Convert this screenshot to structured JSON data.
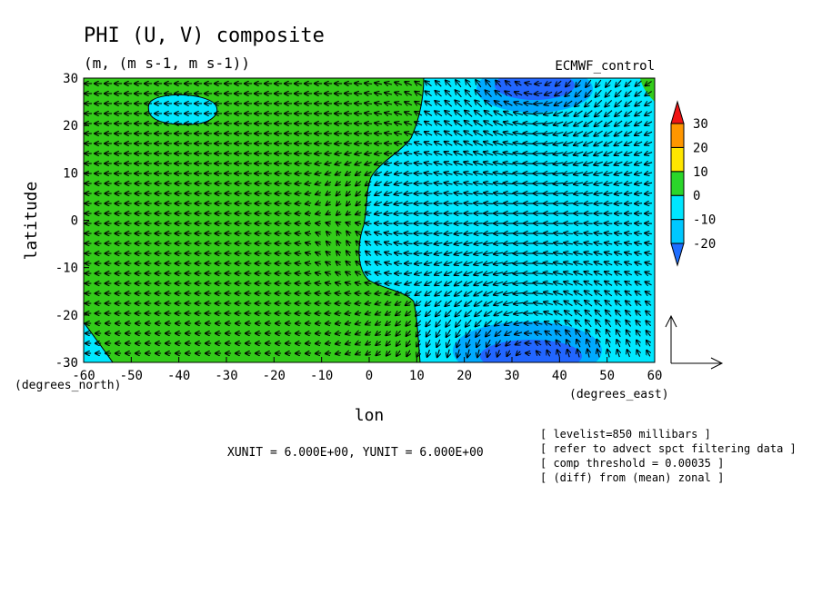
{
  "chart_data": {
    "type": "heatmap",
    "title": "PHI (U, V) composite",
    "subtitle": "(m, (m s-1, m s-1))",
    "dataset_label": "ECMWF_control",
    "xlabel": "lon",
    "ylabel": "latitude",
    "x_unit_label": "(degrees_east)",
    "y_unit_label": "(degrees_north)",
    "xlim": [
      -60,
      60
    ],
    "ylim": [
      -30,
      30
    ],
    "x_ticks": [
      -60,
      -50,
      -40,
      -30,
      -20,
      -10,
      0,
      10,
      20,
      30,
      40,
      50,
      60
    ],
    "y_ticks": [
      -30,
      -20,
      -10,
      0,
      10,
      20,
      30
    ],
    "x_tick_labels": [
      "-60",
      "-50",
      "-40",
      "-30",
      "-20",
      "-10",
      "0",
      "10",
      "20",
      "30",
      "40",
      "50",
      "60"
    ],
    "y_tick_labels": [
      "-30",
      "-20",
      "-10",
      "0",
      "10",
      "20",
      "30"
    ],
    "colorbar": {
      "levels": [
        -20,
        -10,
        0,
        10,
        20,
        30
      ],
      "labels": [
        "-20",
        "-10",
        "0",
        "10",
        "20",
        "30"
      ],
      "colors": [
        "#1e6eff",
        "#00c8ff",
        "#00e6ff",
        "#2ad62a",
        "#ffe600",
        "#ff9600",
        "#f01414"
      ]
    },
    "fill_colors": {
      "green": "#33cc1a",
      "cyan": "#00e8ff",
      "light_blue": "#00aaff",
      "blue": "#2266ff"
    },
    "vector_scale_text": "XUNIT = 6.000E+00, YUNIT = 6.000E+00",
    "annotations": [
      "[ levelist=850 millibars ]",
      "[ refer to advect spct filtering data ]",
      "[ comp threshold = 0.00035 ]",
      "[ (diff) from (mean) zonal ]"
    ]
  }
}
